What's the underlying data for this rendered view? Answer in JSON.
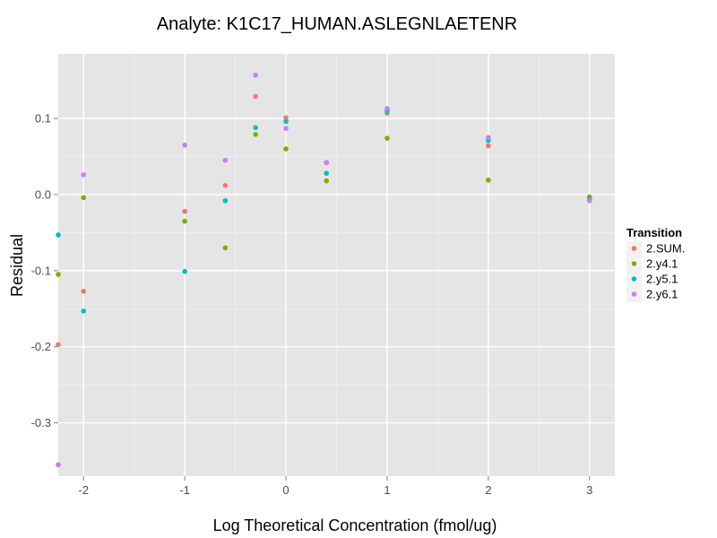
{
  "chart_data": {
    "type": "scatter",
    "title": "Analyte: K1C17_HUMAN.ASLEGNLAETENR",
    "xlabel": "Log Theoretical Concentration (fmol/ug)",
    "ylabel": "Residual",
    "xlim": [
      -2.25,
      3.25
    ],
    "ylim": [
      -0.37,
      0.185
    ],
    "x_ticks": [
      -2,
      -1,
      0,
      1,
      2,
      3
    ],
    "x_tick_labels": [
      "-2",
      "-1",
      "0",
      "1",
      "2",
      "3"
    ],
    "y_ticks": [
      0.1,
      0.0,
      -0.1,
      -0.2,
      -0.3
    ],
    "y_tick_labels": [
      "0.1",
      "0.0",
      "-0.1",
      "-0.2",
      "-0.3"
    ],
    "grid": true,
    "legend": {
      "title": "Transition",
      "position": "right"
    },
    "series": [
      {
        "name": "2.SUM.",
        "color": "#F8766D",
        "points": [
          {
            "x": -2.25,
            "y": -0.197
          },
          {
            "x": -2.0,
            "y": -0.127
          },
          {
            "x": -1.0,
            "y": -0.022
          },
          {
            "x": -0.6,
            "y": 0.012
          },
          {
            "x": -0.3,
            "y": 0.129
          },
          {
            "x": 0.0,
            "y": 0.101
          },
          {
            "x": 0.4,
            "y": 0.042
          },
          {
            "x": 1.0,
            "y": 0.107
          },
          {
            "x": 2.0,
            "y": 0.064
          },
          {
            "x": 3.0,
            "y": -0.006
          }
        ]
      },
      {
        "name": "2.y4.1",
        "color": "#7CAE00",
        "points": [
          {
            "x": -2.25,
            "y": -0.105
          },
          {
            "x": -2.0,
            "y": -0.004
          },
          {
            "x": -1.0,
            "y": -0.035
          },
          {
            "x": -0.6,
            "y": -0.07
          },
          {
            "x": -0.3,
            "y": 0.079
          },
          {
            "x": 0.0,
            "y": 0.06
          },
          {
            "x": 0.4,
            "y": 0.018
          },
          {
            "x": 1.0,
            "y": 0.074
          },
          {
            "x": 2.0,
            "y": 0.019
          },
          {
            "x": 3.0,
            "y": -0.003
          }
        ]
      },
      {
        "name": "2.y5.1",
        "color": "#00BFC4",
        "points": [
          {
            "x": -2.25,
            "y": -0.053
          },
          {
            "x": -2.0,
            "y": -0.153
          },
          {
            "x": -1.0,
            "y": -0.101
          },
          {
            "x": -0.6,
            "y": -0.008
          },
          {
            "x": -0.3,
            "y": 0.088
          },
          {
            "x": 0.0,
            "y": 0.096
          },
          {
            "x": 0.4,
            "y": 0.028
          },
          {
            "x": 1.0,
            "y": 0.11
          },
          {
            "x": 2.0,
            "y": 0.071
          },
          {
            "x": 3.0,
            "y": -0.007
          }
        ]
      },
      {
        "name": "2.y6.1",
        "color": "#C77CFF",
        "points": [
          {
            "x": -2.25,
            "y": -0.355
          },
          {
            "x": -2.0,
            "y": 0.026
          },
          {
            "x": -1.0,
            "y": 0.065
          },
          {
            "x": -0.6,
            "y": 0.045
          },
          {
            "x": -0.3,
            "y": 0.157
          },
          {
            "x": 0.0,
            "y": 0.087
          },
          {
            "x": 0.4,
            "y": 0.042
          },
          {
            "x": 1.0,
            "y": 0.113
          },
          {
            "x": 2.0,
            "y": 0.075
          },
          {
            "x": 3.0,
            "y": -0.008
          }
        ]
      }
    ]
  }
}
